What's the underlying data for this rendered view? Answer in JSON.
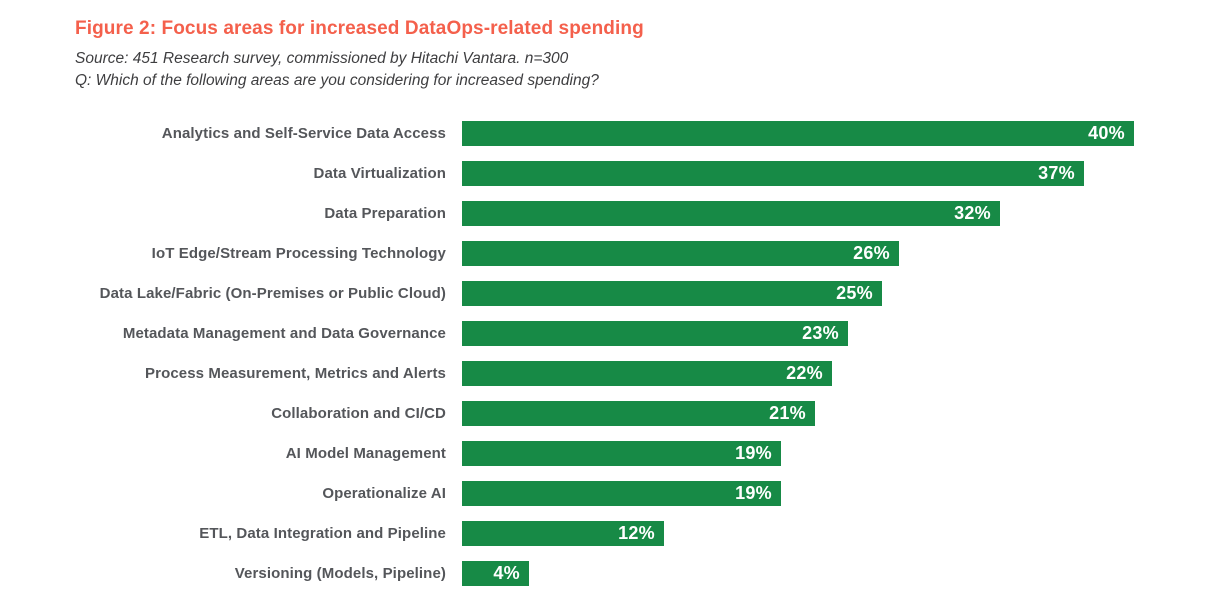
{
  "figure": {
    "title": "Figure 2: Focus areas for increased DataOps-related spending",
    "source": "Source: 451 Research survey, commissioned by Hitachi Vantara. n=300",
    "question": "Q: Which of the following areas are you considering for increased spending?"
  },
  "colors": {
    "bar_green": "#178a46",
    "title_orange": "#f4604c",
    "label_gray": "#54565a",
    "value_text": "#ffffff"
  },
  "chart_data": {
    "type": "bar",
    "orientation": "horizontal",
    "title": "Figure 2: Focus areas for increased DataOps-related spending",
    "xlabel": "",
    "ylabel": "",
    "xlim": [
      0,
      40
    ],
    "grid": false,
    "legend": false,
    "value_format": "percent",
    "categories": [
      "Analytics and Self-Service Data Access",
      "Data Virtualization",
      "Data Preparation",
      "IoT Edge/Stream Processing Technology",
      "Data Lake/Fabric (On-Premises or Public Cloud)",
      "Metadata Management and Data Governance",
      "Process Measurement, Metrics and Alerts",
      "Collaboration and CI/CD",
      "AI Model Management",
      "Operationalize AI",
      "ETL, Data Integration and Pipeline",
      "Versioning (Models, Pipeline)"
    ],
    "values": [
      40,
      37,
      32,
      26,
      25,
      23,
      22,
      21,
      19,
      19,
      12,
      4
    ],
    "value_labels": [
      "40%",
      "37%",
      "32%",
      "26%",
      "25%",
      "23%",
      "22%",
      "21%",
      "19%",
      "19%",
      "12%",
      "4%"
    ]
  }
}
